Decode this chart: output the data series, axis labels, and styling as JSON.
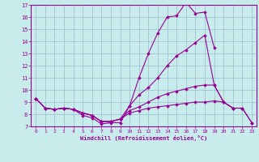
{
  "xlabel": "Windchill (Refroidissement éolien,°C)",
  "bg_color": "#c8ecec",
  "line_color": "#990099",
  "grid_color": "#99bbcc",
  "xlim": [
    -0.5,
    23.5
  ],
  "ylim": [
    7,
    17
  ],
  "yticks": [
    7,
    8,
    9,
    10,
    11,
    12,
    13,
    14,
    15,
    16,
    17
  ],
  "xticks": [
    0,
    1,
    2,
    3,
    4,
    5,
    6,
    7,
    8,
    9,
    10,
    11,
    12,
    13,
    14,
    15,
    16,
    17,
    18,
    19,
    20,
    21,
    22,
    23
  ],
  "lines": [
    {
      "x": [
        0,
        1,
        2,
        3,
        4,
        5,
        6,
        7,
        8,
        9,
        10,
        11,
        12,
        13,
        14,
        15,
        16,
        17,
        18,
        19
      ],
      "y": [
        9.3,
        8.5,
        8.4,
        8.5,
        8.4,
        7.9,
        7.7,
        7.2,
        7.3,
        7.3,
        8.7,
        11.0,
        13.0,
        14.7,
        16.0,
        16.1,
        17.2,
        16.3,
        16.4,
        13.5
      ]
    },
    {
      "x": [
        0,
        1,
        2,
        3,
        4,
        5,
        6,
        7,
        8,
        9,
        10,
        11,
        12,
        13,
        14,
        15,
        16,
        17,
        18,
        19,
        20,
        21
      ],
      "y": [
        9.3,
        8.5,
        8.4,
        8.5,
        8.4,
        8.1,
        7.9,
        7.4,
        7.4,
        7.6,
        8.7,
        9.6,
        10.2,
        11.0,
        12.0,
        12.8,
        13.3,
        13.9,
        14.5,
        10.4,
        9.0,
        8.5
      ]
    },
    {
      "x": [
        0,
        1,
        2,
        3,
        4,
        5,
        6,
        7,
        8,
        9,
        10,
        11,
        12,
        13,
        14,
        15,
        16,
        17,
        18,
        19,
        20,
        21,
        22,
        23
      ],
      "y": [
        9.3,
        8.5,
        8.4,
        8.5,
        8.4,
        8.1,
        7.9,
        7.4,
        7.4,
        7.6,
        8.3,
        8.6,
        9.0,
        9.4,
        9.7,
        9.9,
        10.1,
        10.3,
        10.4,
        10.4,
        9.0,
        8.5,
        8.5,
        7.3
      ]
    },
    {
      "x": [
        0,
        1,
        2,
        3,
        4,
        5,
        6,
        7,
        8,
        9,
        10,
        11,
        12,
        13,
        14,
        15,
        16,
        17,
        18,
        19,
        20,
        21,
        22,
        23
      ],
      "y": [
        9.3,
        8.5,
        8.4,
        8.5,
        8.4,
        8.1,
        7.9,
        7.4,
        7.4,
        7.6,
        8.1,
        8.3,
        8.5,
        8.6,
        8.7,
        8.8,
        8.9,
        9.0,
        9.0,
        9.1,
        9.0,
        8.5,
        8.5,
        7.3
      ]
    }
  ]
}
